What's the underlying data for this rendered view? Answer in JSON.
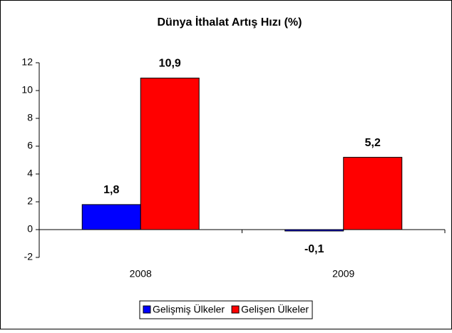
{
  "chart_data": {
    "type": "bar",
    "title": "Dünya İthalat Artış Hızı (%)",
    "categories": [
      "2008",
      "2009"
    ],
    "series": [
      {
        "name": "Gelişmiş Ülkeler",
        "color": "#0000ff",
        "values": [
          1.8,
          -0.1
        ],
        "value_labels": [
          "1,8",
          "-0,1"
        ]
      },
      {
        "name": "Gelişen Ülkeler",
        "color": "#ff0000",
        "values": [
          10.9,
          5.2
        ],
        "value_labels": [
          "10,9",
          "5,2"
        ]
      }
    ],
    "ylim": [
      -2,
      12
    ],
    "yticks": [
      -2,
      0,
      2,
      4,
      6,
      8,
      10,
      12
    ],
    "legend": "bottom"
  }
}
